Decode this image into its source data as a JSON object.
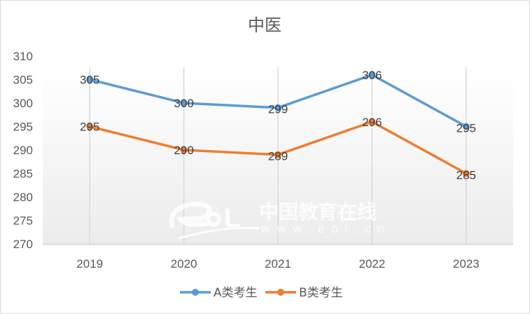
{
  "chart_data": {
    "type": "line",
    "title": "中医",
    "xlabel": "",
    "ylabel": "",
    "categories": [
      "2019",
      "2020",
      "2021",
      "2022",
      "2023"
    ],
    "series": [
      {
        "name": "A类考生",
        "color": "#5b9bd5",
        "values": [
          305,
          300,
          299,
          306,
          295
        ]
      },
      {
        "name": "B类考生",
        "color": "#ed7d31",
        "values": [
          295,
          290,
          289,
          296,
          285
        ]
      }
    ],
    "ylim": [
      270,
      310
    ],
    "yticks": [
      "270",
      "275",
      "280",
      "285",
      "290",
      "295",
      "300",
      "305",
      "310"
    ],
    "grid": "vertical category lines",
    "legend_position": "bottom",
    "data_labels": true
  },
  "watermark": {
    "logo": "eol",
    "cn": "中国教育在线",
    "url": "www.eol.cn"
  }
}
